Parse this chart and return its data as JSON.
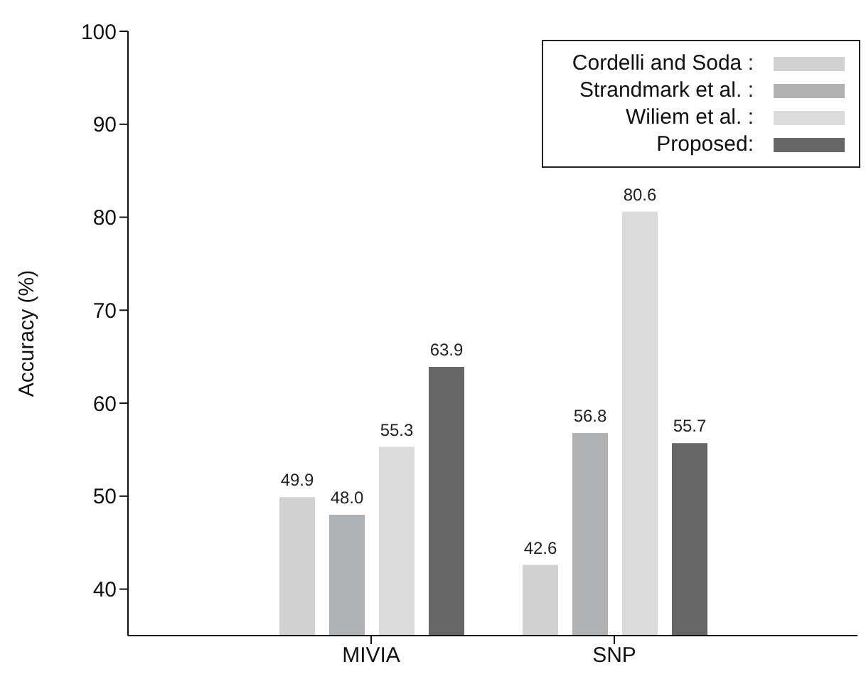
{
  "chart_data": {
    "type": "bar",
    "ylabel": "Accuracy (%)",
    "categories": [
      "MIVIA",
      "SNP"
    ],
    "series": [
      {
        "name": "Cordelli and Soda :",
        "color": "#d0d1d0",
        "values": [
          49.9,
          42.6
        ],
        "value_labels": [
          "49.9",
          "42.6"
        ]
      },
      {
        "name": "Strandmark et al. :",
        "color": "#b0b1b2",
        "values": [
          48.0,
          56.8
        ],
        "value_labels": [
          "48.0",
          "56.8"
        ]
      },
      {
        "name": "Wiliem et al. :",
        "color": "#dadbda",
        "values": [
          55.3,
          80.6
        ],
        "value_labels": [
          "55.3",
          "80.6"
        ]
      },
      {
        "name": "Proposed:",
        "color": "#666666",
        "values": [
          63.9,
          55.7
        ],
        "value_labels": [
          "63.9",
          "55.7"
        ]
      }
    ],
    "ylim": [
      35,
      100
    ],
    "yticks": [
      40,
      50,
      60,
      70,
      80,
      90,
      100
    ],
    "legend": "top right"
  }
}
